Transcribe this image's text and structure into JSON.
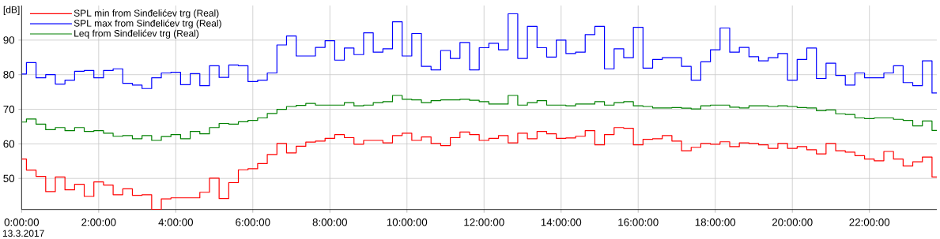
{
  "chart_data": {
    "type": "step",
    "ylabel": "[dB]",
    "annotations": [
      "13.3.2017"
    ],
    "x": [
      0,
      0.25,
      0.5,
      0.75,
      1,
      1.25,
      1.5,
      1.75,
      2,
      2.25,
      2.5,
      2.75,
      3,
      3.25,
      3.5,
      3.75,
      4,
      4.25,
      4.5,
      4.75,
      5,
      5.25,
      5.5,
      5.75,
      6,
      6.25,
      6.5,
      6.75,
      7,
      7.25,
      7.5,
      7.75,
      8,
      8.25,
      8.5,
      8.75,
      9,
      9.25,
      9.5,
      9.75,
      10,
      10.25,
      10.5,
      10.75,
      11,
      11.25,
      11.5,
      11.75,
      12,
      12.25,
      12.5,
      12.75,
      13,
      13.25,
      13.5,
      13.75,
      14,
      14.25,
      14.5,
      14.75,
      15,
      15.25,
      15.5,
      15.75,
      16,
      16.25,
      16.5,
      16.75,
      17,
      17.25,
      17.5,
      17.75,
      18,
      18.25,
      18.5,
      18.75,
      19,
      19.25,
      19.5,
      19.75,
      20,
      20.25,
      20.5,
      20.75,
      21,
      21.25,
      21.5,
      21.75,
      22,
      22.25,
      22.5,
      22.75,
      23,
      23.25,
      23.5,
      23.75
    ],
    "series": [
      {
        "name": "SPL min from Sinđelićev trg (Real)",
        "color": "#ff0000",
        "values": [
          55.6,
          52.4,
          50.6,
          46.2,
          50.4,
          46.7,
          48.3,
          44.8,
          49.0,
          48.1,
          45.3,
          47.0,
          45.1,
          45.3,
          41,
          44.1,
          44.4,
          44.4,
          44.4,
          46.0,
          50.1,
          44.2,
          48.8,
          52.5,
          52.8,
          54.3,
          56.9,
          60.1,
          57.4,
          59.3,
          60.5,
          60.8,
          61.6,
          62.7,
          61.8,
          59.9,
          61.0,
          61.0,
          60.3,
          62.4,
          63.1,
          61.0,
          62.0,
          60.1,
          59.5,
          61.8,
          63.4,
          62.7,
          61.0,
          61.6,
          62.4,
          60.3,
          63.1,
          61.5,
          63.6,
          62.9,
          61.6,
          61.7,
          62.2,
          63.8,
          59.7,
          62.7,
          64.7,
          64.5,
          59.7,
          61.3,
          61.5,
          62.4,
          60.8,
          58.0,
          59.0,
          60.1,
          59.9,
          60.6,
          59.2,
          60.3,
          60.1,
          59.7,
          58.7,
          60.1,
          58.7,
          59.2,
          58.3,
          57.1,
          60.1,
          58.0,
          57.6,
          56.6,
          55.6,
          55.1,
          57.8,
          55.6,
          53.6,
          54.8,
          56.2,
          50.4
        ]
      },
      {
        "name": "SPL max from Sinđelićev trg (Real)",
        "color": "#0000ff",
        "values": [
          80.2,
          83.5,
          79.1,
          80.0,
          77.3,
          78.4,
          81.0,
          81.2,
          79.1,
          81.2,
          81.7,
          77.5,
          77.0,
          76.0,
          79.1,
          80.5,
          80.7,
          77.1,
          80.3,
          76.8,
          82.6,
          79.2,
          82.8,
          82.6,
          78.0,
          78.4,
          80.5,
          88.6,
          91.2,
          85.4,
          85.4,
          87.9,
          89.8,
          84.2,
          87.7,
          85.8,
          92.1,
          86.5,
          87.5,
          95.3,
          85.4,
          91.9,
          82.4,
          81.4,
          87.0,
          84.7,
          89.3,
          81.4,
          87.8,
          89.1,
          87.2,
          97.6,
          84.7,
          94.0,
          87.8,
          85.1,
          90.0,
          86.1,
          86.5,
          91.6,
          94.0,
          81.7,
          87.5,
          84.9,
          93.7,
          81.9,
          84.4,
          84.9,
          84.9,
          82.4,
          78.4,
          83.7,
          87.2,
          93.5,
          86.5,
          87.9,
          85.2,
          84.0,
          84.9,
          86.1,
          78.4,
          84.4,
          87.7,
          78.9,
          83.3,
          79.8,
          77.0,
          80.5,
          79.1,
          79.1,
          80.5,
          82.6,
          77.7,
          76.8,
          84.0,
          74.7
        ]
      },
      {
        "name": "Leq from Sinđelićev trg (Real)",
        "color": "#008000",
        "values": [
          66.3,
          67.2,
          65.7,
          64.1,
          64.7,
          63.8,
          64.7,
          63.6,
          63.8,
          63.1,
          62.2,
          62.4,
          61.5,
          62.4,
          61.0,
          62.1,
          62.7,
          61.5,
          63.6,
          62.9,
          64.7,
          65.9,
          65.7,
          66.4,
          66.8,
          67.5,
          68.8,
          70.0,
          70.8,
          71.1,
          71.7,
          71.2,
          71.2,
          71.2,
          71.9,
          71.0,
          71.2,
          71.9,
          72.2,
          74.0,
          72.9,
          72.7,
          71.9,
          72.5,
          72.7,
          72.7,
          72.9,
          72.6,
          72.2,
          71.5,
          71.5,
          74.0,
          71.2,
          71.9,
          72.5,
          71.2,
          71.2,
          71.0,
          71.5,
          71.5,
          72.2,
          71.2,
          71.9,
          72.2,
          71.0,
          70.8,
          70.4,
          70.4,
          70.5,
          70.3,
          70.1,
          71.0,
          71.2,
          71.2,
          70.6,
          70.4,
          71.0,
          71.0,
          70.8,
          71.0,
          70.8,
          70.5,
          70.4,
          69.6,
          69.8,
          68.7,
          68.5,
          67.5,
          67.3,
          67.5,
          67.5,
          67.1,
          66.8,
          65.2,
          66.6,
          63.9
        ]
      }
    ],
    "xlim": [
      0,
      23.75
    ],
    "ylim": [
      41,
      100
    ],
    "xticks": [
      {
        "value": 0,
        "label": "0:00:00"
      },
      {
        "value": 2,
        "label": "2:00:00"
      },
      {
        "value": 4,
        "label": "4:00:00"
      },
      {
        "value": 6,
        "label": "6:00:00"
      },
      {
        "value": 8,
        "label": "8:00:00"
      },
      {
        "value": 10,
        "label": "10:00:00"
      },
      {
        "value": 12,
        "label": "12:00:00"
      },
      {
        "value": 14,
        "label": "14:00:00"
      },
      {
        "value": 16,
        "label": "16:00:00"
      },
      {
        "value": 18,
        "label": "18:00:00"
      },
      {
        "value": 20,
        "label": "20:00:00"
      },
      {
        "value": 22,
        "label": "22:00:00"
      }
    ],
    "yticks": [
      50,
      60,
      70,
      80,
      90
    ],
    "grid": true,
    "legend": "top left"
  }
}
